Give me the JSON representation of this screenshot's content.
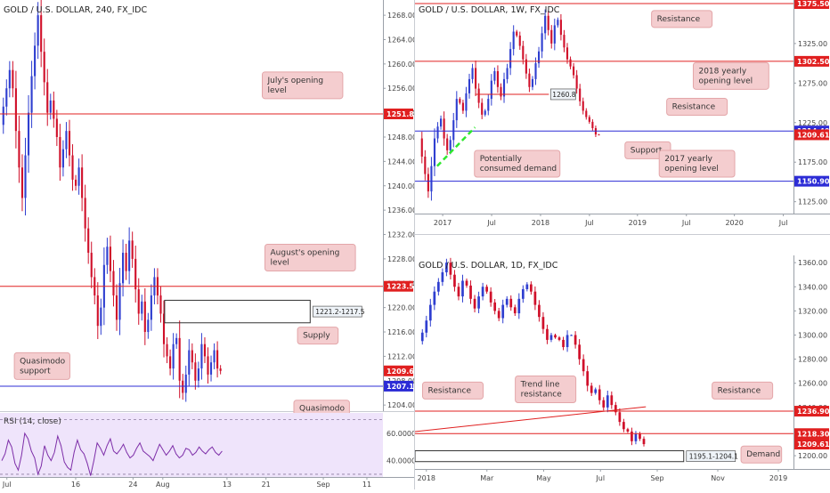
{
  "colors": {
    "bull": "#2f3fd0",
    "bear": "#d0102a",
    "red_level": "#e02020",
    "blue_level": "#2c2cd6",
    "note_bg": "#f4cdcf",
    "note_border": "#e3a6a9",
    "rsi_bg": "#efe4fb",
    "rsi_line": "#7d2ea8",
    "green_dash": "#2ee82e"
  },
  "panels": [
    {
      "id": "p1",
      "title": "GOLD / U.S. DOLLAR, 240, FX_IDC",
      "plot": {
        "w": 430,
        "h": 462
      },
      "y_range": [
        1203,
        1270.5
      ],
      "x_ticks": [
        {
          "label": "Jul",
          "i": 0
        },
        {
          "label": "16",
          "i": 3
        },
        {
          "label": "24",
          "i": 5.5
        },
        {
          "label": "Aug",
          "i": 6.8
        },
        {
          "label": "13",
          "i": 9.6
        },
        {
          "label": "21",
          "i": 11.3
        },
        {
          "label": "Sep",
          "i": 13.8
        },
        {
          "label": "11",
          "i": 15.7
        }
      ],
      "x_domain": [
        -0.3,
        16.4
      ],
      "y_ticks": [
        "1268.00",
        "1264.00",
        "1260.00",
        "1256.00",
        "1252.00",
        "1248.00",
        "1244.00",
        "1240.00",
        "1236.00",
        "1232.00",
        "1228.00",
        "1224.00",
        "1220.00",
        "1216.00",
        "1212.00",
        "1208.00",
        "1204.00"
      ],
      "lines": [
        {
          "value": 1251.8,
          "color": "red",
          "label": "1251.80"
        },
        {
          "value": 1223.5,
          "color": "red",
          "label": "1223.50"
        },
        {
          "value": 1207.1,
          "color": "blue",
          "label": "1207.10"
        }
      ],
      "price_tags": [
        {
          "value": 1209.61,
          "label": "1209.61",
          "color": "red"
        }
      ],
      "price_path": [
        1250,
        1253,
        1256,
        1259,
        1256,
        1249,
        1243,
        1238,
        1245,
        1252,
        1258,
        1263,
        1268,
        1262,
        1257,
        1252,
        1254,
        1251,
        1248,
        1243,
        1246,
        1249,
        1245,
        1241,
        1240,
        1243,
        1238,
        1233,
        1229,
        1225,
        1222,
        1217,
        1220,
        1227,
        1230,
        1226,
        1222,
        1218,
        1224,
        1229,
        1226,
        1231,
        1228,
        1223,
        1219,
        1221,
        1216,
        1218,
        1222,
        1225,
        1222,
        1219,
        1214,
        1212,
        1210,
        1214,
        1215,
        1208,
        1206,
        1209,
        1213,
        1211,
        1208,
        1210,
        1214,
        1212,
        1209,
        1211,
        1213,
        1210,
        1209.6
      ],
      "zone": {
        "from": 1217.5,
        "to": 1221.2,
        "label": "1221.2-1217.5"
      },
      "annotations": [
        {
          "text": "July's opening\nlevel",
          "x": 0.79,
          "value": 1256.5
        },
        {
          "text": "August's opening\nlevel",
          "x": 0.81,
          "value": 1228.2
        },
        {
          "text": "Supply",
          "x": 0.83,
          "value": 1215.4
        },
        {
          "text": "Quasimodo\nsupport",
          "x": 0.11,
          "value": 1210.4
        },
        {
          "text": "Quasimodo\nsupport",
          "x": 0.84,
          "value": 1202.6
        }
      ],
      "rsi": {
        "title": "RSI (14, close)",
        "y_ticks": [
          "60.0000",
          "40.0000"
        ],
        "y_range": [
          28,
          75
        ],
        "bands": [
          70,
          30
        ],
        "values": [
          40,
          45,
          55,
          50,
          38,
          33,
          44,
          60,
          56,
          47,
          42,
          30,
          36,
          51,
          44,
          40,
          46,
          58,
          51,
          39,
          35,
          33,
          46,
          55,
          48,
          45,
          38,
          29,
          40,
          53,
          49,
          44,
          51,
          56,
          47,
          45,
          48,
          52,
          46,
          42,
          44,
          49,
          53,
          47,
          45,
          43,
          40,
          46,
          52,
          48,
          44,
          47,
          51,
          45,
          42,
          44,
          49,
          48,
          44,
          46,
          50,
          47,
          45,
          48,
          50,
          46,
          44,
          47
        ]
      }
    },
    {
      "id": "p2",
      "title": "GOLD / U.S. DOLLAR, 1W, FX_IDC",
      "plot": {
        "w": 425,
        "h": 240
      },
      "y_range": [
        1110,
        1380
      ],
      "x_ticks": [
        {
          "label": "2017",
          "i": 3
        },
        {
          "label": "Jul",
          "i": 8.3
        },
        {
          "label": "2018",
          "i": 13.6
        },
        {
          "label": "Jul",
          "i": 18.9
        },
        {
          "label": "2019",
          "i": 24.1
        },
        {
          "label": "Jul",
          "i": 29.4
        },
        {
          "label": "2020",
          "i": 34.6
        },
        {
          "label": "Jul",
          "i": 39.9
        }
      ],
      "x_domain": [
        0,
        41
      ],
      "y_ticks": [
        "1325.00",
        "1275.00",
        "1225.00",
        "1175.00",
        "1125.00"
      ],
      "lines": [
        {
          "value": 1375.5,
          "color": "red",
          "label": "1375.50"
        },
        {
          "value": 1302.5,
          "color": "red",
          "label": "1302.50"
        },
        {
          "value": 1214.4,
          "color": "blue",
          "label": "1214.40"
        },
        {
          "value": 1150.9,
          "color": "blue",
          "label": "1150.90"
        }
      ],
      "price_tags": [
        {
          "value": 1209.61,
          "label": "1209.61",
          "color": "red"
        }
      ],
      "short_level": {
        "value": 1260.8,
        "label": "1260.8",
        "i_from": 6.5,
        "i_to": 14.5
      },
      "price_path": [
        1205,
        1182,
        1160,
        1138,
        1170,
        1205,
        1220,
        1230,
        1205,
        1190,
        1203,
        1228,
        1255,
        1250,
        1240,
        1262,
        1280,
        1294,
        1268,
        1250,
        1235,
        1240,
        1255,
        1278,
        1290,
        1270,
        1258,
        1280,
        1294,
        1318,
        1340,
        1335,
        1322,
        1305,
        1287,
        1270,
        1280,
        1300,
        1315,
        1338,
        1360,
        1342,
        1325,
        1348,
        1355,
        1336,
        1320,
        1305,
        1296,
        1285,
        1268,
        1252,
        1240,
        1232,
        1226,
        1218,
        1210,
        1209.6
      ],
      "dash": {
        "from": [
          2.4,
          1170
        ],
        "to": [
          6.5,
          1219
        ]
      },
      "annotations": [
        {
          "text": "Resistance",
          "x": 0.705,
          "value": 1356
        },
        {
          "text": "2018 yearly\nopening level",
          "x": 0.835,
          "value": 1284
        },
        {
          "text": "Resistance",
          "x": 0.745,
          "value": 1245
        },
        {
          "text": "Support",
          "x": 0.615,
          "value": 1190
        },
        {
          "text": "2017 yearly\nopening level",
          "x": 0.745,
          "value": 1173
        },
        {
          "text": "Potentially\nconsumed demand",
          "x": 0.27,
          "value": 1173
        }
      ]
    },
    {
      "id": "p3",
      "title": "GOLD / U.S. DOLLAR, 1D, FX_IDC",
      "plot": {
        "w": 425,
        "h": 240
      },
      "y_range": [
        1189,
        1366
      ],
      "x_ticks": [
        {
          "label": "2018",
          "i": 0.3
        },
        {
          "label": "Mar",
          "i": 1.9
        },
        {
          "label": "May",
          "i": 3.4
        },
        {
          "label": "Jul",
          "i": 4.9
        },
        {
          "label": "Sep",
          "i": 6.4
        },
        {
          "label": "Nov",
          "i": 8
        },
        {
          "label": "2019",
          "i": 9.6
        }
      ],
      "x_domain": [
        0,
        10
      ],
      "y_ticks": [
        "1360.00",
        "1340.00",
        "1320.00",
        "1300.00",
        "1280.00",
        "1260.00",
        "1240.00",
        "1220.00",
        "1200.00"
      ],
      "lines": [
        {
          "value": 1236.9,
          "color": "red",
          "label": "1236.90"
        },
        {
          "value": 1218.3,
          "color": "red",
          "label": "1218.30"
        }
      ],
      "price_tags": [
        {
          "value": 1209.61,
          "label": "1209.61",
          "color": "red"
        }
      ],
      "price_path": [
        1295,
        1302,
        1312,
        1325,
        1336,
        1344,
        1352,
        1360,
        1350,
        1340,
        1332,
        1345,
        1341,
        1330,
        1322,
        1332,
        1340,
        1336,
        1327,
        1320,
        1314,
        1325,
        1330,
        1323,
        1318,
        1330,
        1338,
        1342,
        1336,
        1325,
        1315,
        1305,
        1296,
        1300,
        1298,
        1296,
        1290,
        1300,
        1300,
        1292,
        1280,
        1270,
        1258,
        1252,
        1255,
        1246,
        1240,
        1250,
        1242,
        1236,
        1228,
        1222,
        1220,
        1212,
        1218,
        1214,
        1209.6
      ],
      "trend_line": {
        "from": [
          0,
          1220
        ],
        "to": [
          6.1,
          1240.5
        ]
      },
      "zone": {
        "from": 1195.1,
        "to": 1204.1,
        "label": "1195.1-1204.1"
      },
      "annotations": [
        {
          "text": "Resistance",
          "x": 0.1,
          "value": 1254
        },
        {
          "text": "Trend line\nresistance",
          "x": 0.345,
          "value": 1255
        },
        {
          "text": "Resistance",
          "x": 0.865,
          "value": 1254
        },
        {
          "text": "Demand",
          "x": 0.915,
          "value": 1201
        }
      ]
    }
  ]
}
